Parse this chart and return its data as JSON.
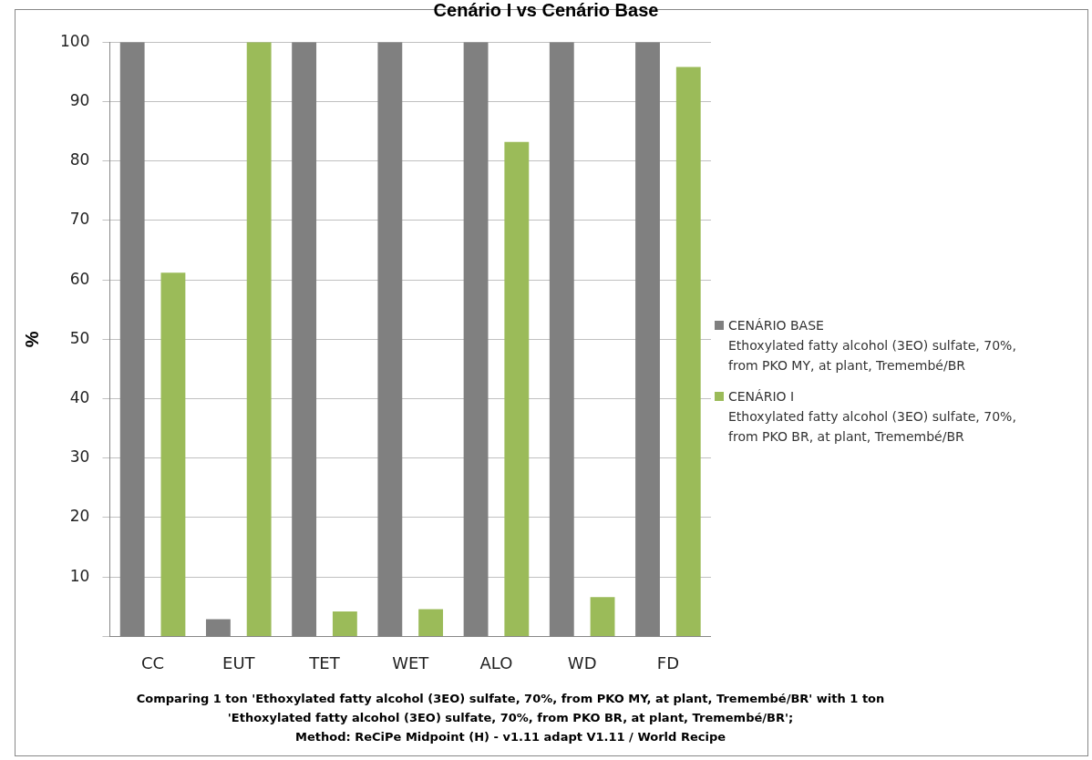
{
  "chart_data": {
    "type": "bar",
    "title": "Cenário I vs Cenário Base",
    "ylabel": "%",
    "categories": [
      "CC",
      "EUT",
      "TET",
      "WET",
      "ALO",
      "WD",
      "FD"
    ],
    "series": [
      {
        "name": "CENÁRIO BASE\nEthoxylated fatty alcohol (3EO) sulfate, 70%,\nfrom PKO MY, at plant, Tremembé/BR",
        "color": "#808080",
        "values": [
          100,
          2.9,
          100,
          100,
          100,
          100,
          100
        ]
      },
      {
        "name": "CENÁRIO I\nEthoxylated fatty alcohol (3EO) sulfate, 70%,\nfrom PKO BR, at plant, Tremembé/BR",
        "color": "#9bbb59",
        "values": [
          61.2,
          100,
          4.2,
          4.6,
          83.2,
          6.6,
          95.8
        ]
      }
    ],
    "ylim": [
      0,
      100
    ],
    "yticks": [
      {
        "value": 0,
        "label": null
      },
      10,
      20,
      30,
      40,
      50,
      60,
      70,
      80,
      90,
      100
    ],
    "grid": "y",
    "legend": "right",
    "annotations": [
      "Comparing 1 ton 'Ethoxylated fatty alcohol (3EO) sulfate, 70%, from PKO MY, at plant, Tremembé/BR' with 1 ton\n'Ethoxylated fatty alcohol (3EO) sulfate, 70%, from PKO BR, at plant, Tremembé/BR';\nMethod: ReCiPe Midpoint (H) - v1.11 adapt V1.11 / World Recipe"
    ]
  }
}
